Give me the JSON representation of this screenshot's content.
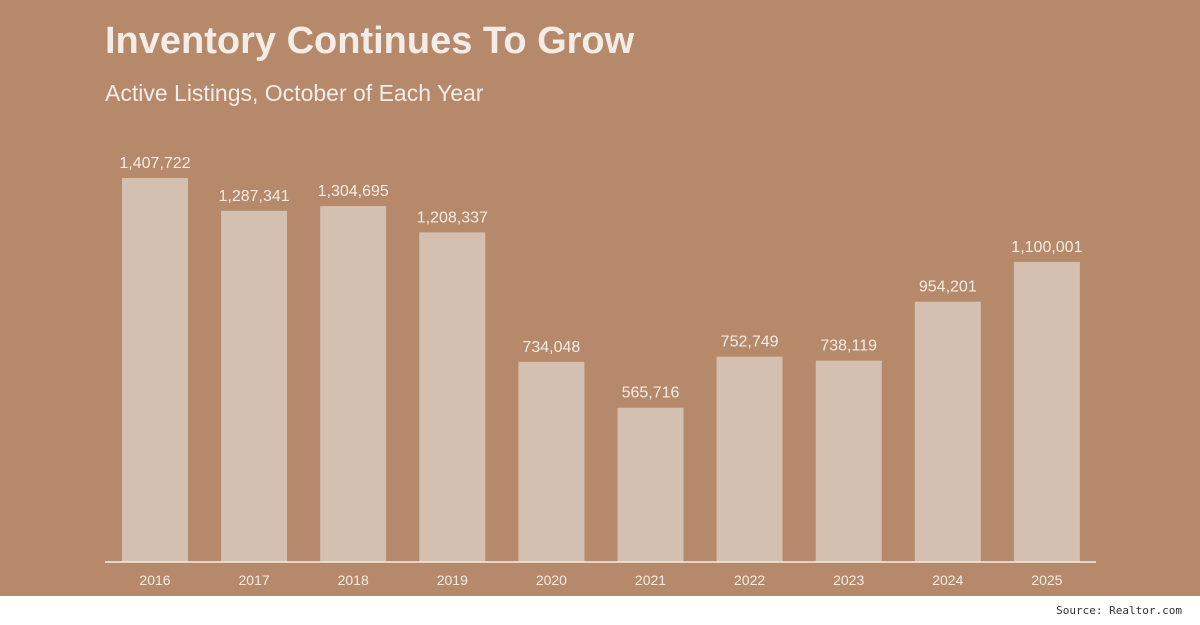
{
  "title": "Inventory Continues To Grow",
  "subtitle": "Active Listings, October of Each Year",
  "source": "Source: Realtor.com",
  "colors": {
    "background": "#b5896a",
    "bar": "#d4c0b1",
    "text": "#f4ece6",
    "baseline": "#f4ece6"
  },
  "chart_data": {
    "type": "bar",
    "title": "Inventory Continues To Grow",
    "subtitle": "Active Listings, October of Each Year",
    "categories": [
      "2016",
      "2017",
      "2018",
      "2019",
      "2020",
      "2021",
      "2022",
      "2023",
      "2024",
      "2025"
    ],
    "values": [
      1407722,
      1287341,
      1304695,
      1208337,
      734048,
      565716,
      752749,
      738119,
      954201,
      1100001
    ],
    "value_labels": [
      "1,407,722",
      "1,287,341",
      "1,304,695",
      "1,208,337",
      "734,048",
      "565,716",
      "752,749",
      "738,119",
      "954,201",
      "1,100,001"
    ],
    "xlabel": "",
    "ylabel": "",
    "ylim": [
      0,
      1407722
    ],
    "grid": false,
    "legend": "none"
  }
}
